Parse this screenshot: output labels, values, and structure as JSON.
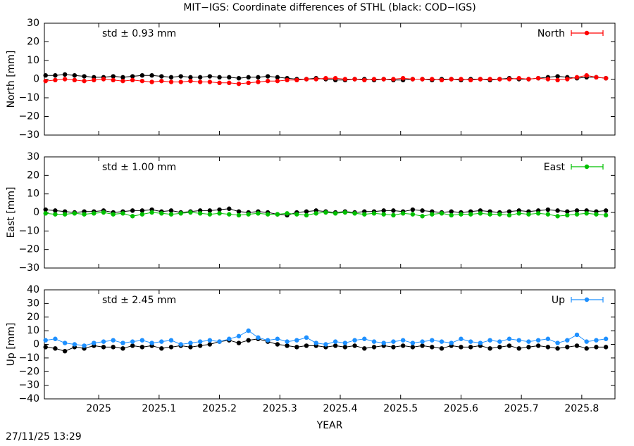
{
  "title": "MIT−IGS: Coordinate differences of STHL (black: COD−IGS)",
  "timestamp": "27/11/25 13:29",
  "chart_data": [
    {
      "type": "scatter",
      "ylabel": "North [mm]",
      "std_label": "std ± 0.93 mm",
      "xlim": [
        2024.91,
        2025.855
      ],
      "xticks": [
        2025,
        2025.1,
        2025.2,
        2025.3,
        2025.4,
        2025.5,
        2025.6,
        2025.7,
        2025.8
      ],
      "ylim": [
        -30,
        30
      ],
      "yticks": [
        {
          "value": -30,
          "label": "−30"
        },
        {
          "value": -20,
          "label": "−20"
        },
        {
          "value": -10,
          "label": "−10"
        },
        0,
        10,
        20,
        30
      ],
      "x": [
        2024.912,
        2024.928,
        2024.944,
        2024.96,
        2024.976,
        2024.992,
        2025.008,
        2025.024,
        2025.04,
        2025.056,
        2025.072,
        2025.088,
        2025.104,
        2025.12,
        2025.136,
        2025.152,
        2025.168,
        2025.184,
        2025.2,
        2025.216,
        2025.232,
        2025.248,
        2025.264,
        2025.28,
        2025.296,
        2025.312,
        2025.328,
        2025.344,
        2025.36,
        2025.376,
        2025.392,
        2025.408,
        2025.424,
        2025.44,
        2025.456,
        2025.472,
        2025.488,
        2025.504,
        2025.52,
        2025.536,
        2025.552,
        2025.568,
        2025.584,
        2025.6,
        2025.616,
        2025.632,
        2025.648,
        2025.664,
        2025.68,
        2025.696,
        2025.712,
        2025.728,
        2025.744,
        2025.76,
        2025.776,
        2025.792,
        2025.808,
        2025.824,
        2025.84
      ],
      "series": [
        {
          "color": "#000000",
          "values": [
            2,
            2,
            2.5,
            2,
            1.5,
            1,
            1,
            1.5,
            1,
            1.5,
            2,
            2,
            1.5,
            1,
            1.5,
            1,
            1,
            1.5,
            1,
            1,
            0.5,
            1,
            1,
            1.5,
            1,
            0.5,
            0,
            0,
            0.5,
            0,
            -0.5,
            -0.5,
            0,
            0,
            -0.5,
            0,
            -0.5,
            -0.5,
            0,
            0,
            -0.5,
            0,
            0,
            -0.5,
            0,
            0,
            -0.5,
            0,
            0.5,
            0,
            0,
            0.5,
            1,
            1.5,
            1,
            0.5,
            1,
            1,
            0.5
          ]
        },
        {
          "name": "North",
          "color": "#ff0000",
          "values": [
            -1,
            -0.5,
            0,
            -0.5,
            -1,
            -0.5,
            0,
            -0.5,
            -1,
            -0.5,
            -1,
            -1.5,
            -1,
            -1.5,
            -1.5,
            -1,
            -1.5,
            -1.5,
            -2,
            -2,
            -2.5,
            -2,
            -1.5,
            -1,
            -1,
            -0.5,
            -0.5,
            0,
            0,
            0.5,
            0.5,
            0,
            0,
            -0.5,
            0,
            0,
            0,
            0.5,
            0,
            0,
            0,
            -0.5,
            0,
            0,
            -0.5,
            0,
            0,
            0,
            0,
            0.5,
            0,
            0.5,
            0,
            -0.5,
            0,
            1,
            2,
            1,
            0.5
          ]
        }
      ]
    },
    {
      "type": "scatter",
      "ylabel": "East [mm]",
      "std_label": "std ± 1.00 mm",
      "xlim": [
        2024.91,
        2025.855
      ],
      "xticks": [
        2025,
        2025.1,
        2025.2,
        2025.3,
        2025.4,
        2025.5,
        2025.6,
        2025.7,
        2025.8
      ],
      "ylim": [
        -30,
        30
      ],
      "yticks": [
        {
          "value": -30,
          "label": "−30"
        },
        {
          "value": -20,
          "label": "−20"
        },
        {
          "value": -10,
          "label": "−10"
        },
        0,
        10,
        20,
        30
      ],
      "x": [
        2024.912,
        2024.928,
        2024.944,
        2024.96,
        2024.976,
        2024.992,
        2025.008,
        2025.024,
        2025.04,
        2025.056,
        2025.072,
        2025.088,
        2025.104,
        2025.12,
        2025.136,
        2025.152,
        2025.168,
        2025.184,
        2025.2,
        2025.216,
        2025.232,
        2025.248,
        2025.264,
        2025.28,
        2025.296,
        2025.312,
        2025.328,
        2025.344,
        2025.36,
        2025.376,
        2025.392,
        2025.408,
        2025.424,
        2025.44,
        2025.456,
        2025.472,
        2025.488,
        2025.504,
        2025.52,
        2025.536,
        2025.552,
        2025.568,
        2025.584,
        2025.6,
        2025.616,
        2025.632,
        2025.648,
        2025.664,
        2025.68,
        2025.696,
        2025.712,
        2025.728,
        2025.744,
        2025.76,
        2025.776,
        2025.792,
        2025.808,
        2025.824,
        2025.84
      ],
      "series": [
        {
          "color": "#000000",
          "values": [
            1.5,
            1,
            0.5,
            0,
            0.5,
            0.5,
            1,
            0,
            0.5,
            1,
            1,
            1.5,
            0.5,
            1,
            0,
            0.5,
            1,
            1,
            1.5,
            2,
            0.5,
            0,
            0.5,
            0,
            -1,
            -1.5,
            0,
            0.5,
            1,
            0.5,
            0,
            0.5,
            0,
            0.5,
            0.5,
            1,
            1,
            0.5,
            1.5,
            1,
            0.5,
            0,
            0.5,
            0,
            0.5,
            1,
            0.5,
            0,
            0.5,
            1,
            0.5,
            1,
            1.5,
            1,
            0.5,
            1,
            1,
            0.5,
            1
          ]
        },
        {
          "name": "East",
          "color": "#00c000",
          "values": [
            -0.5,
            -1,
            -1,
            -0.5,
            -1,
            -0.5,
            0,
            -1,
            -0.5,
            -2,
            -1,
            0,
            -0.5,
            -1,
            -0.5,
            0,
            -0.5,
            -1,
            -0.5,
            -1,
            -1.5,
            -1,
            -0.5,
            -1,
            -1,
            -0.5,
            -1,
            -1.5,
            -0.5,
            0,
            -0.5,
            0,
            -0.5,
            -1,
            -0.5,
            -1,
            -1.5,
            -0.5,
            -1,
            -2,
            -1,
            -0.5,
            -1.5,
            -1,
            -1,
            -0.5,
            -1,
            -1,
            -1.5,
            -0.5,
            -1,
            -0.5,
            -1,
            -2,
            -1.5,
            -1,
            -0.5,
            -1,
            -1.5
          ]
        }
      ]
    },
    {
      "type": "scatter",
      "ylabel": "Up [mm]",
      "std_label": "std ± 2.45 mm",
      "xlabel": "YEAR",
      "xlim": [
        2024.91,
        2025.855
      ],
      "xticks": [
        2025,
        2025.1,
        2025.2,
        2025.3,
        2025.4,
        2025.5,
        2025.6,
        2025.7,
        2025.8
      ],
      "ylim": [
        -40,
        40
      ],
      "yticks": [
        {
          "value": -40,
          "label": "−40"
        },
        {
          "value": -30,
          "label": "−30"
        },
        {
          "value": -20,
          "label": "−20"
        },
        {
          "value": -10,
          "label": "−10"
        },
        0,
        10,
        20,
        30,
        40
      ],
      "x": [
        2024.912,
        2024.928,
        2024.944,
        2024.96,
        2024.976,
        2024.992,
        2025.008,
        2025.024,
        2025.04,
        2025.056,
        2025.072,
        2025.088,
        2025.104,
        2025.12,
        2025.136,
        2025.152,
        2025.168,
        2025.184,
        2025.2,
        2025.216,
        2025.232,
        2025.248,
        2025.264,
        2025.28,
        2025.296,
        2025.312,
        2025.328,
        2025.344,
        2025.36,
        2025.376,
        2025.392,
        2025.408,
        2025.424,
        2025.44,
        2025.456,
        2025.472,
        2025.488,
        2025.504,
        2025.52,
        2025.536,
        2025.552,
        2025.568,
        2025.584,
        2025.6,
        2025.616,
        2025.632,
        2025.648,
        2025.664,
        2025.68,
        2025.696,
        2025.712,
        2025.728,
        2025.744,
        2025.76,
        2025.776,
        2025.792,
        2025.808,
        2025.824,
        2025.84
      ],
      "series": [
        {
          "color": "#000000",
          "values": [
            -2,
            -3,
            -5,
            -2,
            -3,
            -1,
            -2,
            -2,
            -3,
            -1,
            -2,
            -1,
            -3,
            -2,
            -1,
            -2,
            -1,
            0,
            2,
            3,
            1,
            3,
            4,
            2,
            0,
            -1,
            -2,
            -1,
            -1,
            -2,
            -1,
            -2,
            -1,
            -3,
            -2,
            -1,
            -2,
            -1,
            -2,
            -1,
            -2,
            -3,
            -1,
            -2,
            -2,
            -1,
            -3,
            -2,
            -1,
            -3,
            -2,
            -1,
            -2,
            -3,
            -2,
            -1,
            -3,
            -2,
            -2
          ]
        },
        {
          "name": "Up",
          "color": "#1e90ff",
          "values": [
            3,
            4,
            1,
            0,
            -1,
            1,
            2,
            3,
            1,
            2,
            3,
            1,
            2,
            3,
            0,
            1,
            2,
            3,
            2,
            4,
            6,
            10,
            5,
            3,
            4,
            2,
            3,
            5,
            1,
            0,
            2,
            1,
            3,
            4,
            2,
            1,
            2,
            3,
            1,
            2,
            3,
            2,
            1,
            4,
            2,
            1,
            3,
            2,
            4,
            3,
            2,
            3,
            4,
            1,
            3,
            7,
            2,
            3,
            4
          ]
        }
      ]
    }
  ]
}
